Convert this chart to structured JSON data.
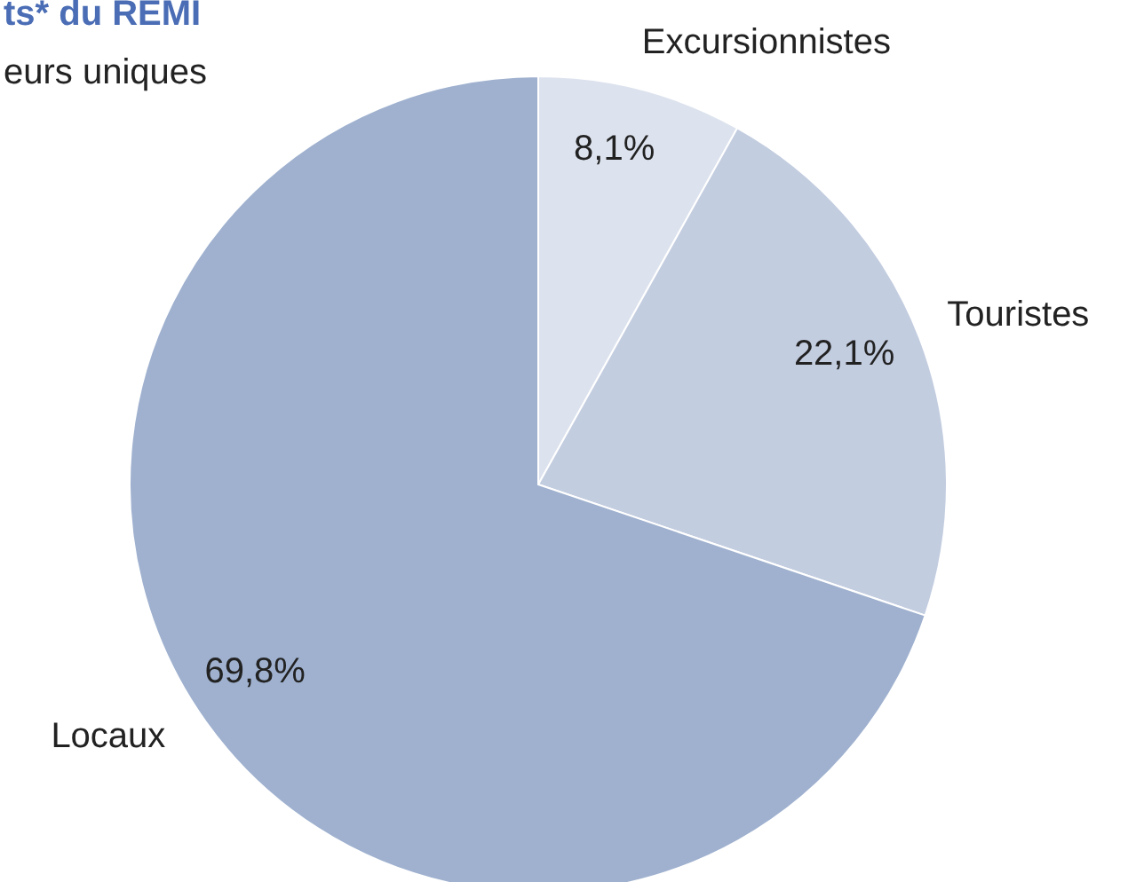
{
  "chart_data": {
    "type": "pie",
    "title": "ts* du REMI",
    "subtitle": "eurs uniques",
    "categories": [
      "Excursionnistes",
      "Touristes",
      "Locaux"
    ],
    "values": [
      8.1,
      22.1,
      69.8
    ],
    "value_labels": [
      "8,1%",
      "22,1%",
      "69,8%"
    ],
    "colors": [
      "#dde3ee",
      "#c3cde0",
      "#9fb1cf"
    ],
    "legend": false
  }
}
